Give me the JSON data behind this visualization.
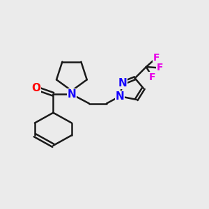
{
  "background_color": "#ebebeb",
  "bond_color": "#1a1a1a",
  "N_color": "#1400ff",
  "O_color": "#ff0000",
  "F_color": "#e800e8",
  "line_width": 1.8,
  "figsize": [
    3.0,
    3.0
  ],
  "dpi": 100,
  "xlim": [
    0,
    10
  ],
  "ylim": [
    0,
    10
  ]
}
